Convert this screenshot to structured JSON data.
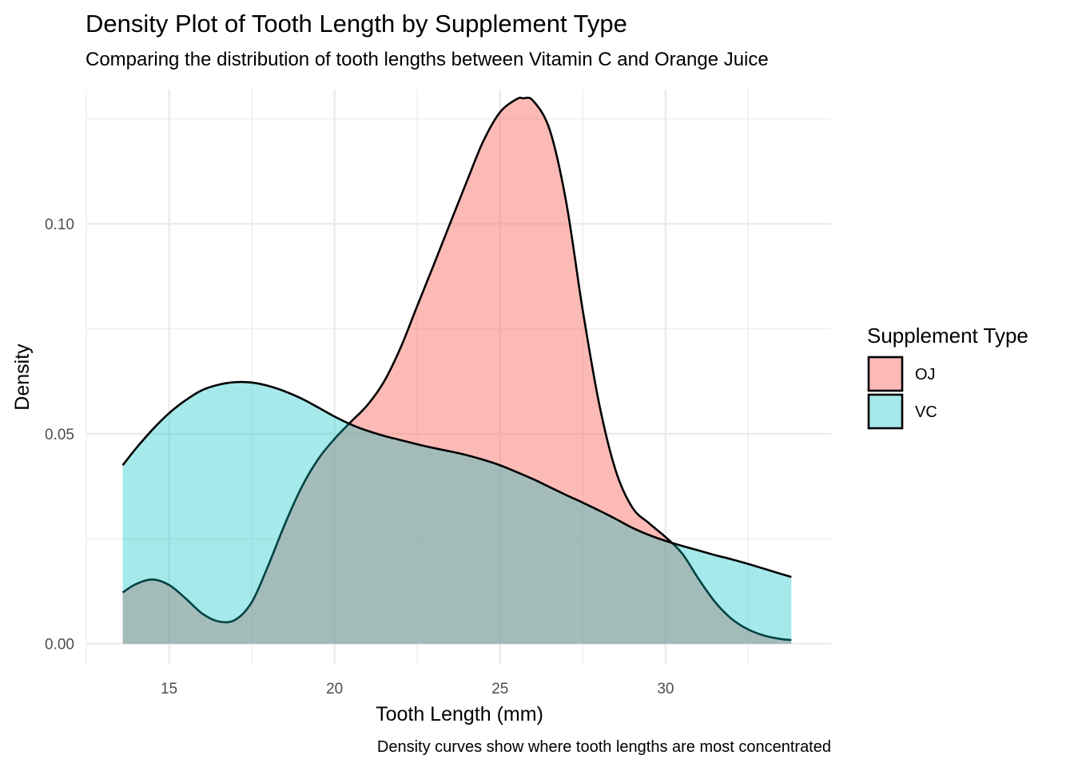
{
  "chart_data": {
    "type": "area",
    "title": "Density Plot of Tooth Length by Supplement Type",
    "subtitle": "Comparing the distribution of tooth lengths between Vitamin C and Orange Juice",
    "xlabel": "Tooth Length (mm)",
    "ylabel": "Density",
    "caption": "Density curves show where tooth lengths are most concentrated",
    "xlim": [
      12.5,
      35
    ],
    "ylim": [
      -0.005,
      0.132
    ],
    "x_ticks": [
      15,
      20,
      25,
      30
    ],
    "x_tick_labels": [
      "15",
      "20",
      "25",
      "30"
    ],
    "y_ticks": [
      0.0,
      0.05,
      0.1
    ],
    "y_tick_labels": [
      "0.00",
      "0.05",
      "0.10"
    ],
    "grid": true,
    "legend": {
      "title": "Supplement Type",
      "position": "right",
      "items": [
        "OJ",
        "VC"
      ]
    },
    "series": [
      {
        "name": "OJ",
        "color": "#f8766d",
        "fill_opacity": 0.5,
        "x": [
          13.6,
          14.0,
          14.5,
          15.0,
          15.5,
          16.0,
          16.5,
          17.0,
          17.5,
          18.0,
          18.5,
          19.0,
          19.5,
          20.0,
          20.5,
          21.0,
          21.5,
          22.0,
          22.5,
          23.0,
          23.5,
          24.0,
          24.5,
          25.0,
          25.5,
          25.7,
          26.0,
          26.5,
          27.0,
          27.5,
          28.0,
          28.5,
          29.0,
          29.5,
          30.0,
          30.5,
          31.0,
          31.5,
          32.0,
          32.5,
          33.0,
          33.5,
          33.8
        ],
        "values": [
          0.0122,
          0.0142,
          0.0153,
          0.014,
          0.0108,
          0.0072,
          0.0053,
          0.0057,
          0.0099,
          0.0187,
          0.0285,
          0.0372,
          0.0439,
          0.0488,
          0.0529,
          0.0569,
          0.0625,
          0.0706,
          0.0805,
          0.0903,
          0.1003,
          0.1102,
          0.1198,
          0.1266,
          0.1297,
          0.1299,
          0.1293,
          0.1224,
          0.1051,
          0.0793,
          0.0569,
          0.0411,
          0.0324,
          0.0287,
          0.0254,
          0.0215,
          0.0154,
          0.0099,
          0.0059,
          0.0034,
          0.0019,
          0.0011,
          0.0009
        ]
      },
      {
        "name": "VC",
        "color": "#00bfc4",
        "fill_opacity": 0.35,
        "x": [
          13.6,
          14.0,
          14.5,
          15.0,
          15.5,
          16.0,
          16.5,
          17.0,
          17.5,
          18.0,
          18.5,
          19.0,
          19.5,
          20.0,
          20.5,
          21.0,
          21.5,
          22.0,
          22.5,
          23.0,
          23.5,
          24.0,
          24.5,
          25.0,
          25.5,
          26.0,
          26.5,
          27.0,
          27.5,
          28.0,
          28.5,
          29.0,
          29.5,
          30.0,
          30.5,
          31.0,
          31.5,
          32.0,
          32.5,
          33.0,
          33.5,
          33.8
        ],
        "values": [
          0.0425,
          0.0465,
          0.051,
          0.0549,
          0.058,
          0.0604,
          0.0617,
          0.0623,
          0.0622,
          0.0614,
          0.0601,
          0.0584,
          0.0563,
          0.0541,
          0.0522,
          0.0507,
          0.0495,
          0.0485,
          0.0475,
          0.0466,
          0.0458,
          0.0449,
          0.0438,
          0.0425,
          0.0409,
          0.0392,
          0.0373,
          0.0354,
          0.0336,
          0.0317,
          0.0297,
          0.0276,
          0.0259,
          0.0245,
          0.0233,
          0.0222,
          0.0211,
          0.0201,
          0.019,
          0.0178,
          0.0166,
          0.0159
        ]
      }
    ]
  }
}
